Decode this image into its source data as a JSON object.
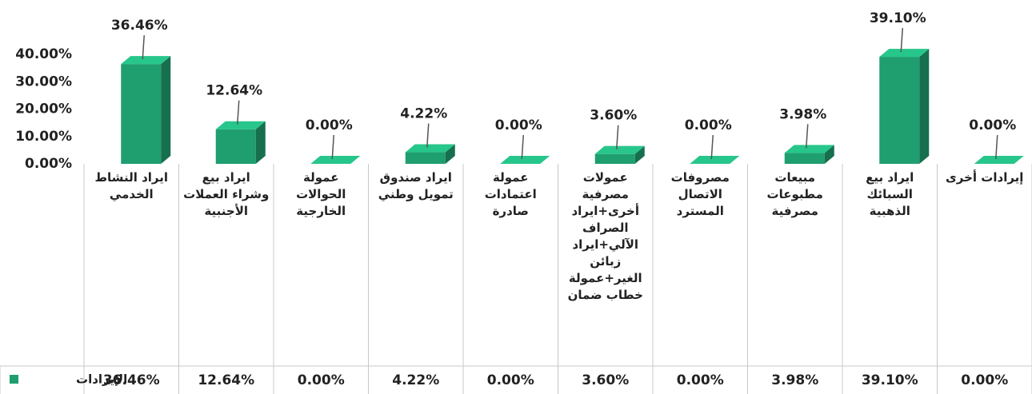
{
  "chart_data": {
    "type": "bar3d",
    "categories": [
      "ايراد النشاط الخدمي",
      "ايراد بيع وشراء العملات الأجنبية",
      "عمولة الحوالات الخارجية",
      "ايراد صندوق تمويل وطني",
      "عمولة اعتمادات صادرة",
      "عمولات مصرفية أخرى+ايراد الصراف الآلي+ايراد زبائن الغير+عمولة خطاب ضمان",
      "مصروفات الاتصال المسترد",
      "مبيعات مطبوعات مصرفية",
      "ايراد بيع السبائك الذهبية",
      "إيرادات أخرى"
    ],
    "series": [
      {
        "name": "الإيرادات",
        "color": "#1f9e6f",
        "values": [
          36.46,
          12.64,
          0,
          4.22,
          0,
          3.6,
          0,
          3.98,
          39.1,
          0
        ],
        "value_labels": [
          "36.46%",
          "12.64%",
          "0.00%",
          "4.22%",
          "0.00%",
          "3.60%",
          "0.00%",
          "3.98%",
          "39.10%",
          "0.00%"
        ]
      }
    ],
    "ylim": [
      0,
      40
    ],
    "yticks": [
      {
        "value": 0,
        "label": "0.00%"
      },
      {
        "value": 10,
        "label": "10.00%"
      },
      {
        "value": 20,
        "label": "20.00%"
      },
      {
        "value": 30,
        "label": "30.00%"
      },
      {
        "value": 40,
        "label": "40.00%"
      }
    ],
    "data_table": true
  }
}
